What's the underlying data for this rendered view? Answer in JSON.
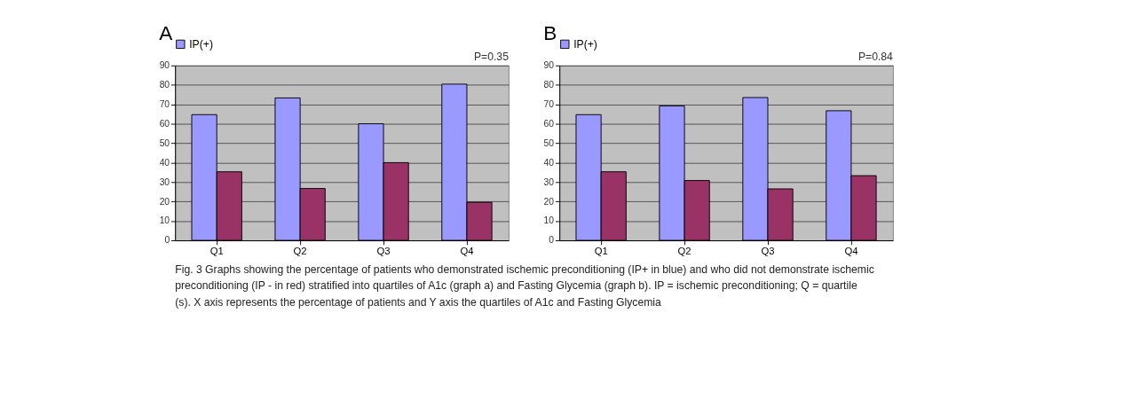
{
  "chart_data": [
    {
      "type": "bar",
      "title": "A",
      "categories": [
        "Q1",
        "Q2",
        "Q3",
        "Q4"
      ],
      "series": [
        {
          "name": "IP(+)",
          "color": "#9999ff",
          "values": [
            64.7,
            73.3,
            60,
            80.4
          ]
        },
        {
          "color": "#993366",
          "values": [
            35.3,
            26.7,
            40,
            19.6
          ]
        }
      ],
      "ylim": [
        0,
        90
      ],
      "yticks": [
        0,
        10,
        20,
        30,
        40,
        50,
        60,
        70,
        80,
        90
      ],
      "grid": "y",
      "legend": "top",
      "annotations": [
        "P=0.35",
        "Fig. 3 Graphs showing the percentage of patients who demonstrated ischemic preconditioning (IP+ in blue) and who did not demonstrate ischemic preconditioning (IP - in red) stratified into quartiles of A1c (graph a) and Fasting Glycemia (graph b). IP = ischemic preconditioning; Q = quartile (s). X axis represents the percentage of patients and Y axis the quartiles of A1c and Fasting Glycemia"
      ]
    },
    {
      "type": "bar",
      "title": "B",
      "categories": [
        "Q1",
        "Q2",
        "Q3",
        "Q4"
      ],
      "series": [
        {
          "name": "IP(+)",
          "color": "#9999ff",
          "values": [
            64.7,
            69.2,
            73.5,
            66.7
          ]
        },
        {
          "color": "#993366",
          "values": [
            35.3,
            30.8,
            26.5,
            33.3
          ]
        }
      ],
      "ylim": [
        0,
        90
      ],
      "yticks": [
        0,
        10,
        20,
        30,
        40,
        50,
        60,
        70,
        80,
        90
      ],
      "grid": "y",
      "legend": "top",
      "annotations": [
        "P=0.84"
      ]
    }
  ]
}
